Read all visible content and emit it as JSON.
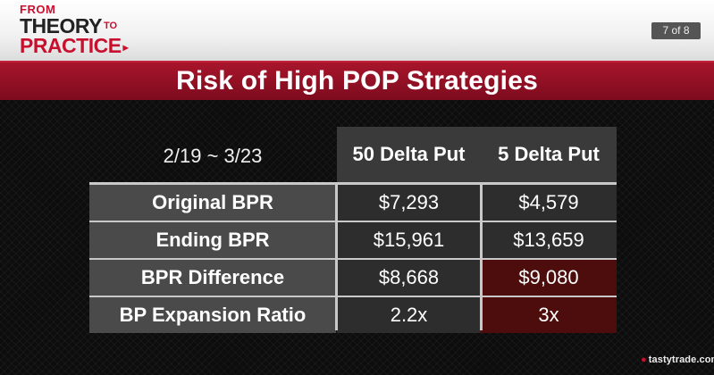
{
  "logo": {
    "line1": "FROM",
    "line2": "THEORY",
    "to": "TO",
    "line3": "PRACTICE",
    "arrow": "▸"
  },
  "page_indicator": "7 of 8",
  "title": "Risk of High POP Strategies",
  "table": {
    "period": "2/19 ~ 3/23",
    "columns": [
      "50 Delta Put",
      "5 Delta Put"
    ],
    "rows": [
      {
        "label": "Original BPR",
        "values": [
          "$7,293",
          "$4,579"
        ]
      },
      {
        "label": "Ending BPR",
        "values": [
          "$15,961",
          "$13,659"
        ]
      },
      {
        "label": "BPR Difference",
        "values": [
          "$8,668",
          "$9,080"
        ]
      },
      {
        "label": "BP Expansion Ratio",
        "values": [
          "2.2x",
          "3x"
        ]
      }
    ]
  },
  "brand": "tastytrade",
  "brand_suffix": ".com",
  "colors": {
    "accent": "#a8152b",
    "highlight": "#4d0d0d"
  }
}
